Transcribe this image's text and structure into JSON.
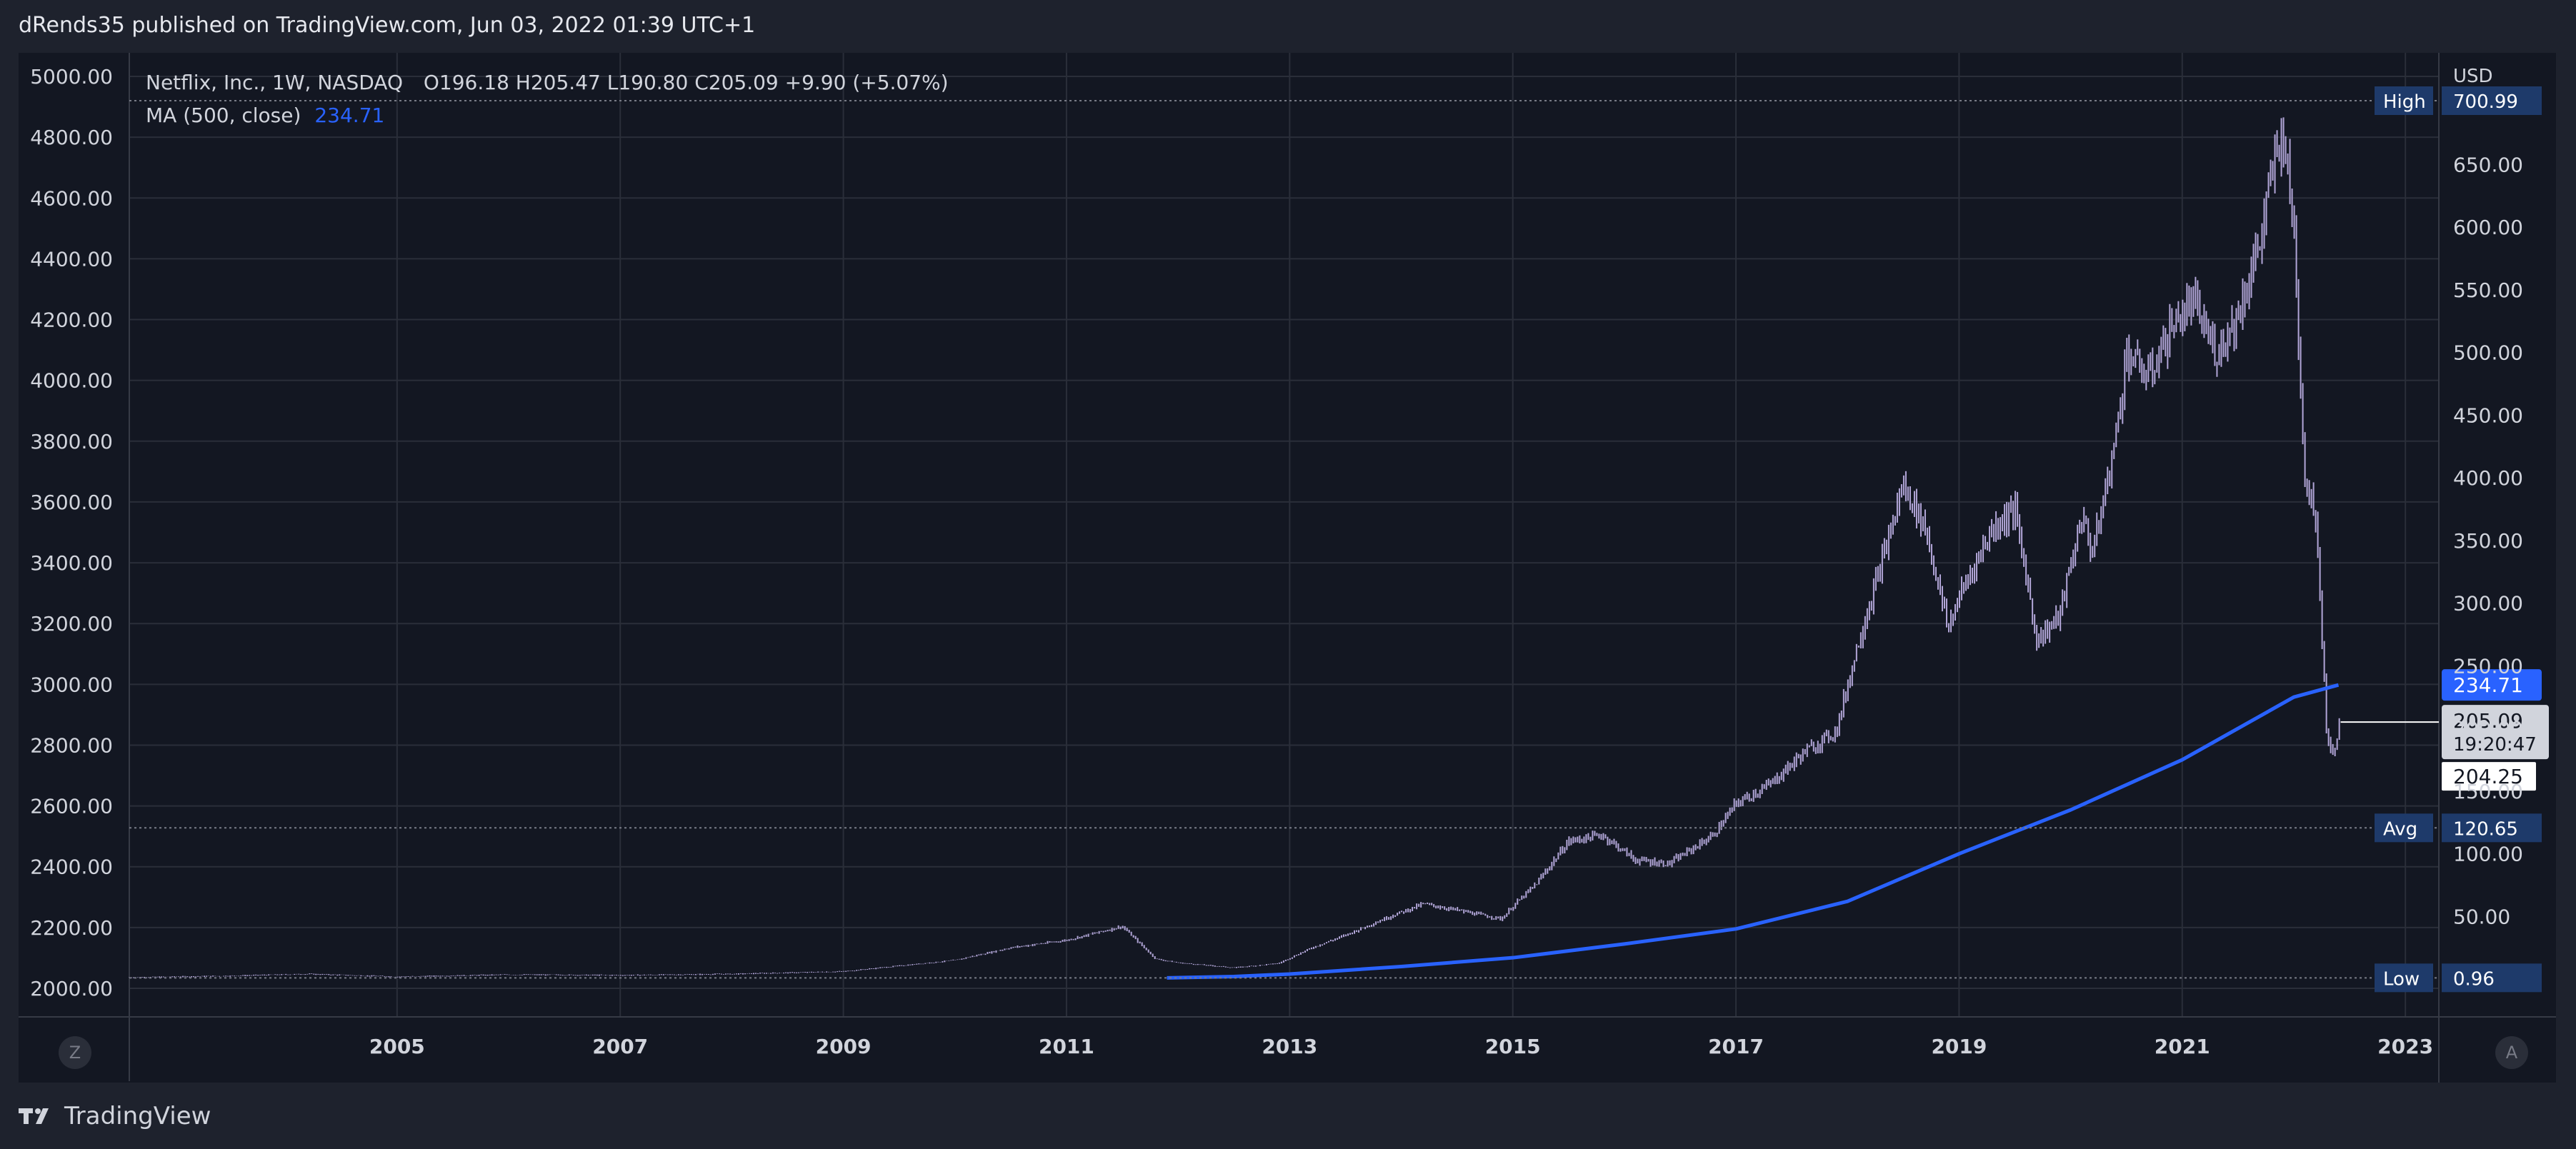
{
  "header": {
    "publish_line": "dRends35 published on TradingView.com, Jun 03, 2022 01:39 UTC+1"
  },
  "legend": {
    "symbol": "Netflix, Inc., 1W, NASDAQ",
    "ohlc": "O196.18  H205.47  L190.80  C205.09  +9.90 (+5.07%)",
    "ma_label": "MA (500, close)",
    "ma_value": "234.71"
  },
  "footer": {
    "brand": "TradingView",
    "zoom_left": "Z",
    "auto_right": "A"
  },
  "colors": {
    "background": "#131722",
    "grid": "#2a2e39",
    "candles": "#b2a6d8",
    "ma_line": "#2962ff",
    "label_box": "#1e3a6a"
  },
  "chart_data": {
    "type": "line",
    "title": "Netflix, Inc., 1W, NASDAQ",
    "x_ticks": [
      "2005",
      "2007",
      "2009",
      "2011",
      "2013",
      "2015",
      "2017",
      "2019",
      "2021",
      "2023"
    ],
    "left_axis_ticks": [
      "5000.00",
      "4800.00",
      "4600.00",
      "4400.00",
      "4200.00",
      "4000.00",
      "3800.00",
      "3600.00",
      "3400.00",
      "3200.00",
      "3000.00",
      "2800.00",
      "2600.00",
      "2400.00",
      "2200.00",
      "2000.00"
    ],
    "right_axis_unit": "USD",
    "right_axis_ticks": [
      "650.00",
      "600.00",
      "550.00",
      "500.00",
      "450.00",
      "400.00",
      "350.00",
      "300.00",
      "250.00",
      "200.00",
      "150.00",
      "100.00",
      "50.00"
    ],
    "left_ylim": [
      2000,
      5000
    ],
    "right_ylim": [
      0,
      700.99
    ],
    "xlim": [
      2002.6,
      2023.3
    ],
    "grid": true,
    "series": [
      {
        "name": "Netflix, Inc., 1W, NASDAQ",
        "style": "weekly-bars",
        "x": [
          2002.6,
          2003.5,
          2004.2,
          2005.0,
          2006.0,
          2007.0,
          2008.0,
          2009.0,
          2010.0,
          2010.5,
          2011.0,
          2011.5,
          2011.8,
          2012.0,
          2012.5,
          2012.9,
          2013.2,
          2013.5,
          2013.9,
          2014.2,
          2014.5,
          2014.9,
          2015.0,
          2015.2,
          2015.5,
          2015.8,
          2016.1,
          2016.4,
          2016.8,
          2017.0,
          2017.3,
          2017.6,
          2017.9,
          2018.1,
          2018.3,
          2018.5,
          2018.7,
          2018.9,
          2019.0,
          2019.3,
          2019.5,
          2019.7,
          2019.9,
          2020.1,
          2020.2,
          2020.4,
          2020.5,
          2020.7,
          2020.9,
          2021.1,
          2021.3,
          2021.5,
          2021.7,
          2021.8,
          2021.9,
          2022.0,
          2022.1,
          2022.2,
          2022.3,
          2022.35,
          2022.42
        ],
        "y": [
          1.2,
          2.5,
          4.0,
          1.8,
          3.5,
          3.0,
          4.0,
          6.0,
          15.0,
          25.0,
          31.0,
          42.0,
          16.0,
          13.0,
          9.0,
          12.5,
          25.0,
          35.0,
          50.0,
          60.0,
          55.0,
          48.0,
          58.0,
          75.0,
          110.0,
          115.0,
          95.0,
          92.0,
          115.0,
          140.0,
          155.0,
          180.0,
          198.0,
          270.0,
          330.0,
          395.0,
          360.0,
          280.0,
          305.0,
          360.0,
          375.0,
          270.0,
          290.0,
          370.0,
          340.0,
          430.0,
          500.0,
          480.0,
          520.0,
          540.0,
          500.0,
          530.0,
          590.0,
          640.0,
          680.0,
          600.0,
          400.0,
          370.0,
          190.0,
          180.0,
          205.09
        ]
      },
      {
        "name": "MA (500, close)",
        "style": "line",
        "x": [
          2011.9,
          2012.5,
          2013.0,
          2014.0,
          2015.0,
          2016.0,
          2017.0,
          2018.0,
          2019.0,
          2020.0,
          2021.0,
          2021.5,
          2022.0,
          2022.4
        ],
        "y": [
          0.96,
          2.0,
          4.0,
          10.0,
          17.0,
          28.0,
          40.0,
          62.0,
          100.0,
          135.0,
          175.0,
          200.0,
          225.0,
          234.71
        ]
      }
    ],
    "price_labels": [
      {
        "label": "High",
        "value": "700.99"
      },
      {
        "label": "Avg",
        "value": "120.65"
      },
      {
        "label": "Low",
        "value": "0.96"
      }
    ],
    "last_price": {
      "value": "205.09",
      "countdown": "19:20:47"
    },
    "ma_last": "234.71",
    "prev_close": "204.25"
  }
}
